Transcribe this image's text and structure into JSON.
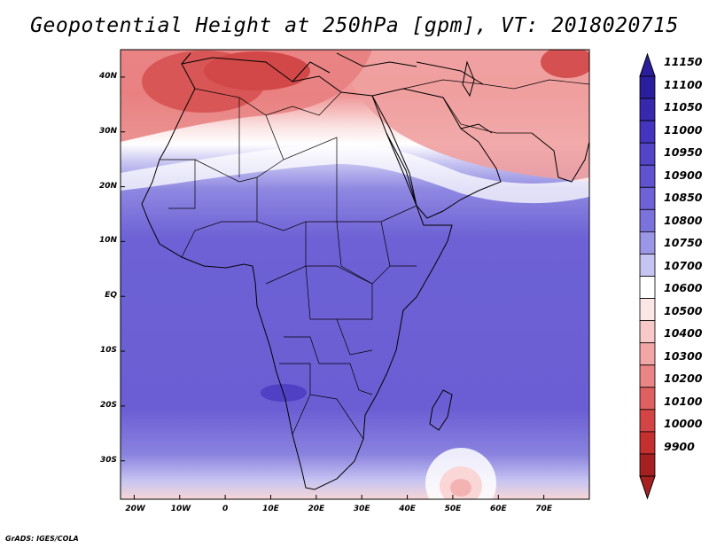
{
  "title": "Geopotential Height at 250hPa [gpm], VT: 2018020715",
  "map": {
    "lon_range": [
      -23,
      80
    ],
    "lat_range": [
      -37,
      45
    ],
    "lon_ticks": [
      {
        "lon": -20,
        "label": "20W"
      },
      {
        "lon": -10,
        "label": "10W"
      },
      {
        "lon": 0,
        "label": "0"
      },
      {
        "lon": 10,
        "label": "10E"
      },
      {
        "lon": 20,
        "label": "20E"
      },
      {
        "lon": 30,
        "label": "30E"
      },
      {
        "lon": 40,
        "label": "40E"
      },
      {
        "lon": 50,
        "label": "50E"
      },
      {
        "lon": 60,
        "label": "60E"
      },
      {
        "lon": 70,
        "label": "70E"
      }
    ],
    "lat_ticks": [
      {
        "lat": 40,
        "label": "40N"
      },
      {
        "lat": 30,
        "label": "30N"
      },
      {
        "lat": 20,
        "label": "20N"
      },
      {
        "lat": 10,
        "label": "10N"
      },
      {
        "lat": 0,
        "label": "EQ"
      },
      {
        "lat": -10,
        "label": "10S"
      },
      {
        "lat": -20,
        "label": "20S"
      },
      {
        "lat": -30,
        "label": "30S"
      }
    ]
  },
  "colorbar": {
    "labels": [
      "11150",
      "11100",
      "11050",
      "11000",
      "10950",
      "10900",
      "10850",
      "10800",
      "10750",
      "10700",
      "10600",
      "10500",
      "10400",
      "10300",
      "10200",
      "10100",
      "10000",
      "9900"
    ],
    "colors": [
      "#2a1e9c",
      "#3728ae",
      "#4535be",
      "#5445c8",
      "#6153d0",
      "#6e62d6",
      "#7c72dc",
      "#9c96e6",
      "#c6c4f2",
      "#ffffff",
      "#fde6e6",
      "#f9c8c8",
      "#f2a6a6",
      "#e98585",
      "#df6060",
      "#d34545",
      "#c43030",
      "#a52020"
    ]
  },
  "footer": "GrADS: IGES/COLA"
}
